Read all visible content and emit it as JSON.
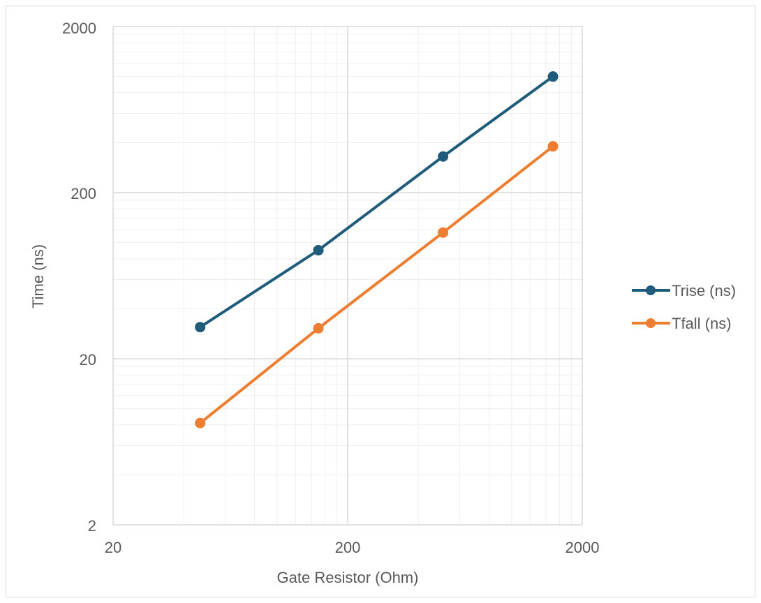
{
  "chart_data": {
    "type": "line",
    "title": "",
    "xlabel": "Gate Resistor (Ohm)",
    "ylabel": "Time (ns)",
    "xscale": "log",
    "yscale": "log",
    "xlim": [
      20,
      2000
    ],
    "ylim": [
      2,
      2000
    ],
    "x_ticks": [
      "20",
      "200",
      "2000"
    ],
    "y_ticks": [
      "2",
      "20",
      "200",
      "2000"
    ],
    "grid": true,
    "legend_position": "right",
    "x": [
      47,
      150,
      510,
      1500
    ],
    "series": [
      {
        "name": "Trise (ns)",
        "color": "#1f5b7a",
        "values": [
          31,
          90,
          330,
          1000
        ]
      },
      {
        "name": "Tfall (ns)",
        "color": "#ed7d31",
        "values": [
          8.2,
          30.5,
          115,
          380
        ]
      }
    ]
  }
}
